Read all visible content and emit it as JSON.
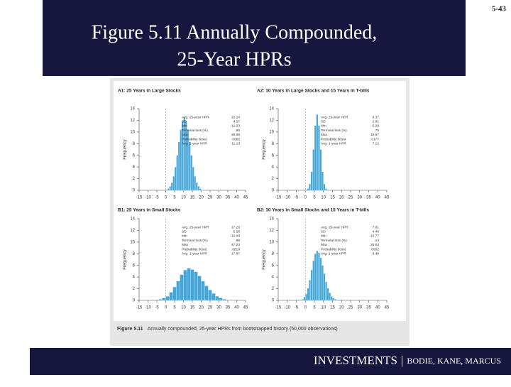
{
  "header": {
    "title_lines": [
      "Figure 5.11 Annually Compounded,",
      "25-Year HPRs"
    ],
    "slide_number": "5-43"
  },
  "chart_data": [
    {
      "type": "histogram",
      "title": "A1: 25 Years in Large Stocks",
      "ylabel": "Frequency",
      "color": "#45a6d9",
      "bins": [
        0,
        1,
        2,
        3,
        4,
        5,
        6,
        7,
        8,
        9,
        10,
        11,
        12,
        13,
        14,
        15,
        16,
        17,
        18,
        19,
        20,
        21,
        22,
        23
      ],
      "values": [
        0.1,
        0.3,
        0.7,
        1.3,
        2.4,
        4.0,
        6.0,
        8.3,
        10.4,
        11.9,
        12.5,
        11.9,
        10.4,
        8.3,
        6.0,
        4.0,
        2.4,
        1.3,
        0.7,
        0.3,
        0.1,
        0.1,
        0
      ],
      "xlim": [
        -15,
        45
      ],
      "xticks": [
        -15,
        -10,
        -5,
        0,
        5,
        10,
        15,
        20,
        25,
        30,
        35,
        40,
        45
      ],
      "ylim": [
        0,
        14
      ],
      "yticks": [
        0,
        2,
        4,
        6,
        8,
        10,
        12,
        14
      ],
      "vline": 0,
      "stats": [
        {
          "label": "Avg. 25-year HPR",
          "value": "10.24"
        },
        {
          "label": "SD",
          "value": "4.27"
        },
        {
          "label": "Min",
          "value": "-11.23"
        },
        {
          "label": "Terminal loss (%)",
          "value": ".95"
        },
        {
          "label": "Max",
          "value": "28.69"
        },
        {
          "label": "Probability (loss)",
          "value": ".0065"
        },
        {
          "label": "Avg. 1-year HPR",
          "value": "11.13"
        }
      ]
    },
    {
      "type": "histogram",
      "title": "A2: 10 Years in Large Stocks and 15 Years in T-bills",
      "ylabel": "Frequency",
      "color": "#45a6d9",
      "bins": [
        0,
        1,
        2,
        3,
        4,
        5,
        6,
        7,
        8,
        9,
        10,
        11,
        12,
        13
      ],
      "values": [
        0.1,
        0.3,
        1.1,
        3.2,
        7.0,
        11.1,
        13.0,
        11.1,
        7.0,
        3.2,
        1.1,
        0.3,
        0.1
      ],
      "xlim": [
        -15,
        45
      ],
      "xticks": [
        -15,
        -10,
        -5,
        0,
        5,
        10,
        15,
        20,
        25,
        30,
        35,
        40,
        45
      ],
      "ylim": [
        0,
        14
      ],
      "yticks": [
        0,
        2,
        4,
        6,
        8,
        10,
        12,
        14
      ],
      "vline": 0,
      "stats": [
        {
          "label": "Avg. 25-year HPR",
          "value": "6.37"
        },
        {
          "label": "SD",
          "value": "2.01"
        },
        {
          "label": "Min",
          "value": "-5.28"
        },
        {
          "label": "Terminal loss (%)",
          "value": ".75"
        },
        {
          "label": "Max",
          "value": "16.97"
        },
        {
          "label": "Probability (loss)",
          "value": ".0177"
        },
        {
          "label": "Avg. 1-year HPR",
          "value": "7.12"
        }
      ]
    },
    {
      "type": "histogram",
      "title": "B1: 25 Years in Small Stocks",
      "ylabel": "Frequency",
      "color": "#45a6d9",
      "bins": [
        -4,
        -2,
        0,
        2,
        4,
        6,
        8,
        10,
        12,
        14,
        16,
        18,
        20,
        22,
        24,
        26,
        28,
        30,
        32,
        34,
        36,
        38,
        40
      ],
      "values": [
        0.2,
        0.4,
        0.7,
        1.4,
        2.3,
        3.3,
        4.4,
        5.2,
        5.5,
        5.3,
        4.9,
        4.2,
        3.3,
        2.5,
        1.8,
        1.2,
        0.7,
        0.4,
        0.2,
        0.1,
        0.1,
        0
      ],
      "xlim": [
        -15,
        45
      ],
      "xticks": [
        -15,
        -10,
        -5,
        0,
        5,
        10,
        15,
        20,
        25,
        30,
        35,
        40,
        45
      ],
      "ylim": [
        0,
        14
      ],
      "yticks": [
        0,
        2,
        4,
        6,
        8,
        10,
        12,
        14
      ],
      "vline": 0,
      "stats": [
        {
          "label": "Avg. 25-year HPR",
          "value": "17.29"
        },
        {
          "label": "SD",
          "value": "5.58"
        },
        {
          "label": "Min",
          "value": "-12.00"
        },
        {
          "label": "Terminal loss (%)",
          "value": ".99"
        },
        {
          "label": "Max",
          "value": "47.03"
        },
        {
          "label": "Probability (loss)",
          "value": ".0019"
        },
        {
          "label": "Avg. 1-year HPR",
          "value": "17.87"
        }
      ]
    },
    {
      "type": "histogram",
      "title": "B2: 10 Years in Small Stocks and 15 Years in T-bills",
      "ylabel": "Frequency",
      "color": "#45a6d9",
      "bins": [
        -3,
        -2,
        -1,
        0,
        1,
        2,
        3,
        4,
        5,
        6,
        7,
        8,
        9,
        10,
        11,
        12,
        13,
        14,
        15,
        16,
        17,
        18,
        19,
        20
      ],
      "values": [
        0.1,
        0.2,
        0.6,
        1.1,
        2.1,
        3.5,
        5.2,
        6.8,
        8.0,
        8.5,
        8.2,
        7.3,
        6.0,
        4.6,
        3.2,
        2.1,
        1.3,
        0.7,
        0.4,
        0.2,
        0.1,
        0,
        0
      ],
      "xlim": [
        -15,
        45
      ],
      "xticks": [
        -15,
        -10,
        -5,
        0,
        5,
        10,
        15,
        20,
        25,
        30,
        35,
        40,
        45
      ],
      "ylim": [
        0,
        14
      ],
      "yticks": [
        0,
        2,
        4,
        6,
        8,
        10,
        12,
        14
      ],
      "vline": 0,
      "stats": [
        {
          "label": "Avg. 25-year HPR",
          "value": "7.01"
        },
        {
          "label": "SD",
          "value": "4.46"
        },
        {
          "label": "Min",
          "value": "-10.77"
        },
        {
          "label": "Terminal loss (%)",
          "value": ".14"
        },
        {
          "label": "Max",
          "value": "26.63"
        },
        {
          "label": "Probability (loss)",
          "value": ".0652"
        },
        {
          "label": "Avg. 1-year HPR",
          "value": "9.40"
        }
      ]
    }
  ],
  "caption": {
    "label": "Figure 5.11",
    "text": "Annually compounded, 25-year HPRs from bootstrapped history (50,000 observations)"
  },
  "footer": {
    "brand": "INVESTMENTS",
    "separator": "|",
    "authors": "BODIE, KANE, MARCUS"
  }
}
